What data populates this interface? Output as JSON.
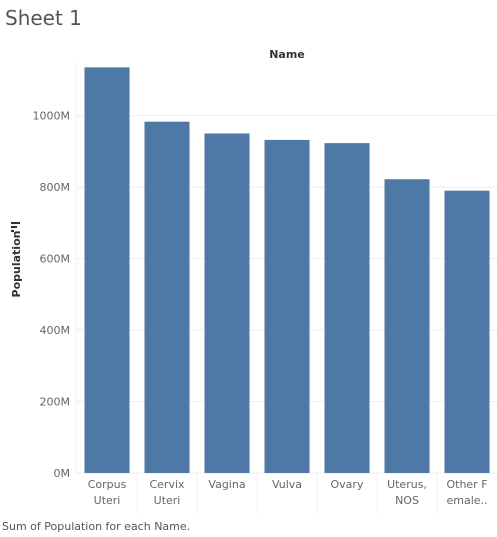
{
  "sheet": {
    "title": "Sheet 1",
    "caption": "Sum of Population for each Name."
  },
  "colors": {
    "bar": "#4e79a7",
    "grid": "#eeeeee",
    "text": "#666666"
  },
  "icons": {
    "sort": "sort-descending-icon"
  },
  "chart_data": {
    "type": "bar",
    "title": "",
    "column_header": "Name",
    "xlabel": "",
    "ylabel": "Population",
    "ylim": [
      0,
      1150000000
    ],
    "grid": true,
    "y_ticks": [
      {
        "value": 0,
        "label": "0M"
      },
      {
        "value": 200000000,
        "label": "200M"
      },
      {
        "value": 400000000,
        "label": "400M"
      },
      {
        "value": 600000000,
        "label": "600M"
      },
      {
        "value": 800000000,
        "label": "800M"
      },
      {
        "value": 1000000000,
        "label": "1000M"
      }
    ],
    "categories": [
      [
        "Corpus",
        "Uteri"
      ],
      [
        "Cervix",
        "Uteri"
      ],
      [
        "Vagina"
      ],
      [
        "Vulva"
      ],
      [
        "Ovary"
      ],
      [
        "Uterus,",
        "NOS"
      ],
      [
        "Other F",
        "emale.."
      ]
    ],
    "values": [
      1135000000,
      983000000,
      950000000,
      932000000,
      923000000,
      822000000,
      790000000
    ]
  }
}
